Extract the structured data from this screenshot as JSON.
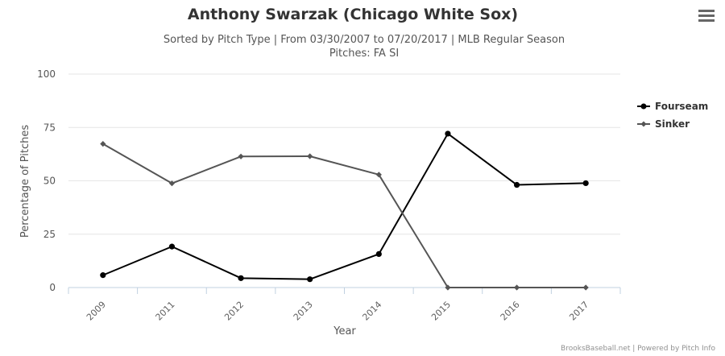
{
  "chart_data": {
    "type": "line",
    "title": "Anthony Swarzak (Chicago White Sox)",
    "subtitle": "Sorted by Pitch Type | From 03/30/2007 to 07/20/2017 | MLB Regular Season",
    "subtitle2": "Pitches: FA SI",
    "xlabel": "Year",
    "ylabel": "Percentage of Pitches",
    "categories": [
      "2009",
      "2011",
      "2012",
      "2013",
      "2014",
      "2015",
      "2016",
      "2017"
    ],
    "ylim": [
      0,
      100
    ],
    "yticks": [
      "0",
      "25",
      "50",
      "75",
      "100"
    ],
    "grid": "horizontal",
    "legend_position": "right",
    "series": [
      {
        "name": "Fourseam",
        "color": "#000000",
        "marker": "circle",
        "values": [
          5.8,
          19.2,
          4.4,
          3.9,
          15.7,
          72.1,
          48.1,
          48.9
        ]
      },
      {
        "name": "Sinker",
        "color": "#555555",
        "marker": "diamond",
        "values": [
          67.3,
          48.8,
          61.4,
          61.5,
          52.9,
          0.0,
          0.0,
          0.0
        ]
      }
    ],
    "credits": "BrooksBaseball.net | Powered by Pitch Info"
  },
  "menu_icon": "hamburger-menu-icon"
}
